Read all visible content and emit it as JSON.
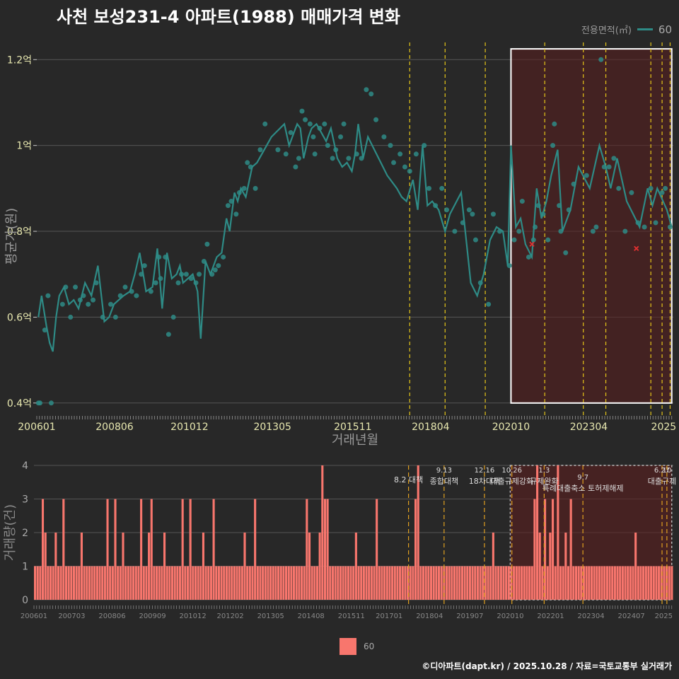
{
  "title": "사천 보성231-4 아파트(1988) 매매가격 변화",
  "legend_top": {
    "title": "전용면적(㎡)",
    "label": "60"
  },
  "legend_bottom": {
    "label": "60"
  },
  "footer": "©디아파트(dapt.kr) / 2025.10.28 / 자료=국토교통부 실거래가",
  "colors": {
    "line": "#2e8b86",
    "bar": "#f8766d",
    "policy": "#e6c619",
    "highlight": "#5a1e1e",
    "error": "#e03030"
  },
  "chart_data": [
    {
      "type": "line",
      "xlabel": "거래년월",
      "ylabel": "평균가(원)",
      "ylim": [
        0.37,
        1.24
      ],
      "xlim": [
        2006.0,
        2025.8
      ],
      "x_ticks": [
        {
          "x": 2006.0,
          "label": "200601"
        },
        {
          "x": 2008.42,
          "label": "200806"
        },
        {
          "x": 2010.75,
          "label": "201012"
        },
        {
          "x": 2013.33,
          "label": "201305"
        },
        {
          "x": 2015.83,
          "label": "201511"
        },
        {
          "x": 2018.25,
          "label": "201804"
        },
        {
          "x": 2020.75,
          "label": "202010"
        },
        {
          "x": 2023.17,
          "label": "202304"
        },
        {
          "x": 2025.5,
          "label": "2025"
        }
      ],
      "y_ticks": [
        {
          "y": 0.4,
          "label": "0.4억"
        },
        {
          "y": 0.6,
          "label": "0.6억"
        },
        {
          "y": 0.8,
          "label": "0.8억"
        },
        {
          "y": 1.0,
          "label": "1억"
        },
        {
          "y": 1.2,
          "label": "1.2억"
        }
      ],
      "highlight": {
        "x0": 2020.75,
        "x1": 2025.75,
        "y0": 0.4,
        "y1": 1.225
      },
      "policy_lines": [
        2017.6,
        2018.7,
        2019.95,
        2021.8,
        2023.0,
        2023.7,
        2025.1,
        2025.45,
        2025.7
      ],
      "series": [
        {
          "name": "60",
          "x": [
            2006.05,
            2006.15,
            2006.3,
            2006.4,
            2006.5,
            2006.6,
            2006.7,
            2006.85,
            2007.0,
            2007.15,
            2007.3,
            2007.5,
            2007.7,
            2007.9,
            2008.1,
            2008.25,
            2008.4,
            2008.55,
            2008.7,
            2008.9,
            2009.05,
            2009.2,
            2009.4,
            2009.6,
            2009.75,
            2009.9,
            2010.05,
            2010.2,
            2010.35,
            2010.45,
            2010.55,
            2010.7,
            2010.85,
            2011.0,
            2011.1,
            2011.25,
            2011.4,
            2011.5,
            2011.6,
            2011.75,
            2011.9,
            2012.0,
            2012.15,
            2012.25,
            2012.35,
            2012.5,
            2012.7,
            2012.85,
            2013.0,
            2013.3,
            2013.7,
            2013.85,
            2014.0,
            2014.1,
            2014.2,
            2014.3,
            2014.45,
            2014.55,
            2014.7,
            2014.85,
            2015.0,
            2015.15,
            2015.35,
            2015.5,
            2015.65,
            2015.8,
            2015.9,
            2016.0,
            2016.15,
            2016.3,
            2016.5,
            2016.7,
            2016.9,
            2017.2,
            2017.35,
            2017.5,
            2017.7,
            2017.85,
            2018.0,
            2018.15,
            2018.3,
            2018.5,
            2018.7,
            2018.85,
            2019.2,
            2019.5,
            2019.7,
            2019.9,
            2020.1,
            2020.3,
            2020.5,
            2020.65,
            2020.75,
            2020.9,
            2021.05,
            2021.2,
            2021.4,
            2021.55,
            2021.7,
            2021.85,
            2022.0,
            2022.2,
            2022.35,
            2022.6,
            2022.85,
            2023.2,
            2023.5,
            2023.7,
            2023.85,
            2024.05,
            2024.2,
            2024.35,
            2024.55,
            2024.75,
            2025.0,
            2025.15,
            2025.3,
            2025.6,
            2025.75
          ],
          "y": [
            0.6,
            0.65,
            0.58,
            0.54,
            0.52,
            0.6,
            0.65,
            0.67,
            0.63,
            0.64,
            0.62,
            0.68,
            0.65,
            0.72,
            0.59,
            0.6,
            0.63,
            0.64,
            0.65,
            0.66,
            0.7,
            0.75,
            0.66,
            0.67,
            0.76,
            0.62,
            0.75,
            0.69,
            0.7,
            0.72,
            0.68,
            0.69,
            0.7,
            0.66,
            0.55,
            0.73,
            0.7,
            0.72,
            0.74,
            0.75,
            0.83,
            0.8,
            0.89,
            0.87,
            0.9,
            0.88,
            0.95,
            0.96,
            0.98,
            1.02,
            1.05,
            1.0,
            1.03,
            1.05,
            1.04,
            0.97,
            1.02,
            1.04,
            1.05,
            1.03,
            1.01,
            1.04,
            0.97,
            0.95,
            0.96,
            0.94,
            0.98,
            1.05,
            0.97,
            1.02,
            0.99,
            0.96,
            0.93,
            0.9,
            0.88,
            0.87,
            0.92,
            0.85,
            1.0,
            0.86,
            0.87,
            0.85,
            0.8,
            0.84,
            0.89,
            0.68,
            0.65,
            0.7,
            0.78,
            0.81,
            0.8,
            0.72,
            1.0,
            0.81,
            0.83,
            0.77,
            0.74,
            0.9,
            0.83,
            0.87,
            0.93,
            0.99,
            0.8,
            0.85,
            0.95,
            0.9,
            1.0,
            0.95,
            0.9,
            0.97,
            0.92,
            0.87,
            0.84,
            0.81,
            0.9,
            0.86,
            0.9,
            0.85,
            0.81
          ]
        },
        {
          "name": "60-points",
          "x": [
            2006.05,
            2006.1,
            2006.25,
            2006.35,
            2006.45,
            2006.8,
            2006.9,
            2007.05,
            2007.2,
            2007.35,
            2007.45,
            2007.6,
            2007.75,
            2007.85,
            2008.05,
            2008.3,
            2008.45,
            2008.6,
            2008.75,
            2008.95,
            2009.1,
            2009.25,
            2009.35,
            2009.55,
            2009.7,
            2009.8,
            2009.85,
            2010.0,
            2010.1,
            2010.25,
            2010.4,
            2010.5,
            2010.65,
            2010.8,
            2010.95,
            2011.05,
            2011.2,
            2011.3,
            2011.45,
            2011.55,
            2011.65,
            2011.8,
            2011.95,
            2012.05,
            2012.2,
            2012.3,
            2012.45,
            2012.55,
            2012.65,
            2012.8,
            2012.95,
            2013.1,
            2013.5,
            2013.75,
            2013.9,
            2014.05,
            2014.15,
            2014.25,
            2014.35,
            2014.5,
            2014.6,
            2014.65,
            2014.8,
            2014.95,
            2015.05,
            2015.2,
            2015.3,
            2015.45,
            2015.55,
            2015.7,
            2015.95,
            2016.1,
            2016.25,
            2016.4,
            2016.55,
            2016.8,
            2017.0,
            2017.1,
            2017.3,
            2017.45,
            2017.6,
            2017.8,
            2018.05,
            2018.2,
            2018.4,
            2018.6,
            2018.75,
            2019.0,
            2019.25,
            2019.45,
            2019.55,
            2019.65,
            2019.8,
            2020.05,
            2020.2,
            2020.4,
            2020.7,
            2020.85,
            2021.0,
            2021.1,
            2021.3,
            2021.45,
            2021.5,
            2021.6,
            2021.75,
            2021.9,
            2022.05,
            2022.1,
            2022.25,
            2022.3,
            2022.45,
            2022.55,
            2022.7,
            2023.1,
            2023.3,
            2023.4,
            2023.55,
            2023.65,
            2023.8,
            2023.95,
            2024.1,
            2024.3,
            2024.5,
            2024.7,
            2024.9,
            2025.1,
            2025.25,
            2025.45,
            2025.55,
            2025.7
          ],
          "y": [
            0.4,
            0.4,
            0.57,
            0.65,
            0.4,
            0.63,
            0.67,
            0.6,
            0.67,
            0.64,
            0.65,
            0.63,
            0.64,
            0.68,
            0.6,
            0.63,
            0.6,
            0.65,
            0.67,
            0.66,
            0.65,
            0.7,
            0.72,
            0.66,
            0.68,
            0.74,
            0.69,
            0.74,
            0.56,
            0.6,
            0.68,
            0.7,
            0.7,
            0.69,
            0.68,
            0.7,
            0.73,
            0.77,
            0.7,
            0.71,
            0.72,
            0.74,
            0.86,
            0.87,
            0.84,
            0.89,
            0.9,
            0.96,
            0.95,
            0.9,
            0.99,
            1.05,
            0.99,
            0.98,
            1.03,
            0.95,
            0.97,
            1.08,
            1.06,
            1.05,
            1.02,
            0.98,
            1.04,
            1.05,
            1.0,
            0.97,
            0.99,
            1.02,
            1.05,
            0.97,
            0.98,
            0.97,
            1.13,
            1.12,
            1.06,
            1.02,
            1.0,
            0.96,
            0.98,
            0.95,
            0.94,
            0.98,
            1.0,
            0.9,
            0.86,
            0.9,
            0.85,
            0.8,
            0.82,
            0.85,
            0.84,
            0.78,
            0.68,
            0.63,
            0.84,
            0.8,
            0.72,
            0.78,
            0.8,
            0.87,
            0.74,
            0.78,
            0.81,
            0.86,
            0.84,
            0.78,
            1.0,
            1.05,
            0.86,
            0.8,
            0.75,
            0.85,
            0.91,
            0.93,
            0.8,
            0.81,
            1.2,
            0.95,
            0.95,
            0.97,
            0.9,
            0.8,
            0.89,
            0.82,
            0.81,
            0.9,
            0.82,
            0.89,
            0.9,
            0.81
          ]
        }
      ],
      "error_marks": [
        {
          "x": 2021.4,
          "y": 0.77
        },
        {
          "x": 2024.65,
          "y": 0.76
        }
      ]
    },
    {
      "type": "bar",
      "ylabel": "거래량(건)",
      "ylim": [
        0,
        4
      ],
      "y_ticks": [
        0,
        1,
        2,
        3,
        4
      ],
      "x_ticks": [
        {
          "x": 2006.0,
          "label": "200601"
        },
        {
          "x": 2007.17,
          "label": "200703"
        },
        {
          "x": 2008.42,
          "label": "200806"
        },
        {
          "x": 2009.67,
          "label": "200909"
        },
        {
          "x": 2010.92,
          "label": "201012"
        },
        {
          "x": 2012.08,
          "label": "201202"
        },
        {
          "x": 2013.33,
          "label": "201305"
        },
        {
          "x": 2014.58,
          "label": "201408"
        },
        {
          "x": 2015.83,
          "label": "201511"
        },
        {
          "x": 2017.0,
          "label": "201701"
        },
        {
          "x": 2018.25,
          "label": "201804"
        },
        {
          "x": 2019.5,
          "label": "201907"
        },
        {
          "x": 2020.75,
          "label": "202010"
        },
        {
          "x": 2022.0,
          "label": "202201"
        },
        {
          "x": 2023.25,
          "label": "202304"
        },
        {
          "x": 2024.5,
          "label": "202407"
        },
        {
          "x": 2025.5,
          "label": "2025"
        }
      ],
      "highlight": {
        "x0": 2020.75,
        "x1": 2025.75
      },
      "policy_events": [
        {
          "x": 2017.6,
          "label": "8.2 대책",
          "tier": 2
        },
        {
          "x": 2018.7,
          "label": "9.13\n종합대책",
          "tier": 1
        },
        {
          "x": 2019.95,
          "label": "12.16\n18차대책",
          "tier": 1
        },
        {
          "x": 2020.8,
          "label": "10.26\n대출규제강화",
          "tier": 1
        },
        {
          "x": 2021.8,
          "label": "1.3\n규제완화",
          "tier": 1
        },
        {
          "x": 2023.0,
          "label": "9.7\n특례대출축소 토허제해제",
          "tier": 2
        },
        {
          "x": 2025.45,
          "label": "6.27\n대출규제",
          "tier": 1
        },
        {
          "x": 2025.6,
          "label": "10\n",
          "tier": 1
        }
      ],
      "values": [
        1,
        1,
        1,
        3,
        2,
        1,
        1,
        1,
        2,
        1,
        1,
        3,
        1,
        1,
        1,
        1,
        1,
        1,
        2,
        1,
        1,
        1,
        1,
        1,
        1,
        1,
        1,
        1,
        3,
        1,
        1,
        3,
        1,
        1,
        2,
        1,
        1,
        1,
        1,
        1,
        1,
        3,
        1,
        1,
        2,
        3,
        1,
        1,
        1,
        1,
        2,
        1,
        1,
        1,
        1,
        1,
        1,
        3,
        1,
        1,
        3,
        1,
        1,
        1,
        1,
        2,
        1,
        1,
        1,
        3,
        1,
        1,
        1,
        1,
        1,
        1,
        1,
        1,
        1,
        1,
        1,
        2,
        1,
        1,
        1,
        3,
        1,
        1,
        1,
        1,
        1,
        1,
        1,
        1,
        1,
        1,
        1,
        1,
        1,
        1,
        1,
        1,
        1,
        1,
        1,
        3,
        2,
        1,
        1,
        1,
        2,
        4,
        3,
        3,
        1,
        1,
        1,
        1,
        1,
        1,
        1,
        1,
        1,
        1,
        2,
        1,
        1,
        1,
        1,
        1,
        1,
        1,
        3,
        1,
        1,
        1,
        1,
        1,
        1,
        1,
        1,
        1,
        1,
        1,
        1,
        1,
        1,
        3,
        4,
        1,
        1,
        1,
        1,
        1,
        1,
        1,
        1,
        1,
        1,
        1,
        1,
        1,
        1,
        1,
        1,
        1,
        1,
        1,
        1,
        1,
        1,
        1,
        1,
        1,
        1,
        1,
        1,
        2,
        1,
        1,
        1,
        1,
        1,
        1,
        1,
        1,
        1,
        1,
        1,
        1,
        1,
        1,
        1,
        3,
        4,
        2,
        1,
        3,
        1,
        2,
        3,
        1,
        4,
        1,
        1,
        2,
        1,
        3,
        1,
        1,
        1,
        1,
        1,
        1,
        1,
        1,
        1,
        1,
        1,
        1,
        1,
        1,
        1,
        1,
        1,
        1,
        1,
        1,
        1,
        1,
        1,
        1,
        2,
        1,
        1,
        1,
        1,
        1,
        1,
        1,
        1,
        1,
        1,
        1,
        1,
        1,
        1
      ]
    }
  ]
}
